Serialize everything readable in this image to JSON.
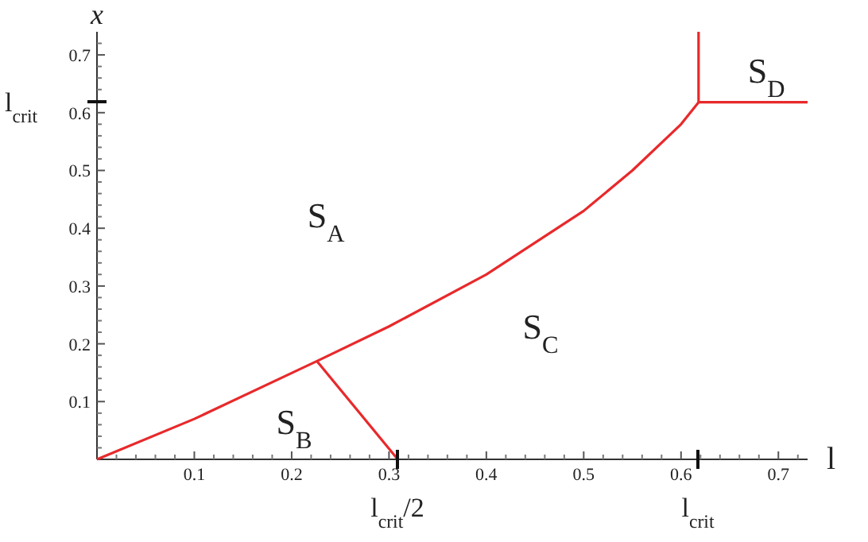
{
  "chart_data": {
    "type": "line",
    "xlabel": "l",
    "ylabel": "x",
    "xlim": [
      0,
      0.73
    ],
    "ylim": [
      0,
      0.74
    ],
    "xticks": [
      0.1,
      0.2,
      0.3,
      0.4,
      0.5,
      0.6,
      0.7,
      {
        "value": 0.02,
        "label": null
      },
      {
        "value": 0.04,
        "label": null
      },
      {
        "value": 0.06,
        "label": null
      },
      {
        "value": 0.08,
        "label": null
      },
      {
        "value": 0.12,
        "label": null
      },
      {
        "value": 0.14,
        "label": null
      },
      {
        "value": 0.16,
        "label": null
      },
      {
        "value": 0.18,
        "label": null
      },
      {
        "value": 0.22,
        "label": null
      },
      {
        "value": 0.24,
        "label": null
      },
      {
        "value": 0.26,
        "label": null
      },
      {
        "value": 0.28,
        "label": null
      },
      {
        "value": 0.32,
        "label": null
      },
      {
        "value": 0.34,
        "label": null
      },
      {
        "value": 0.36,
        "label": null
      },
      {
        "value": 0.38,
        "label": null
      },
      {
        "value": 0.42,
        "label": null
      },
      {
        "value": 0.44,
        "label": null
      },
      {
        "value": 0.46,
        "label": null
      },
      {
        "value": 0.48,
        "label": null
      },
      {
        "value": 0.52,
        "label": null
      },
      {
        "value": 0.54,
        "label": null
      },
      {
        "value": 0.56,
        "label": null
      },
      {
        "value": 0.58,
        "label": null
      },
      {
        "value": 0.62,
        "label": null
      },
      {
        "value": 0.64,
        "label": null
      },
      {
        "value": 0.66,
        "label": null
      },
      {
        "value": 0.68,
        "label": null
      },
      {
        "value": 0.72,
        "label": null
      }
    ],
    "yticks": [
      0.1,
      0.2,
      0.3,
      0.4,
      0.5,
      0.6,
      0.7,
      {
        "value": 0.02,
        "label": null
      },
      {
        "value": 0.04,
        "label": null
      },
      {
        "value": 0.06,
        "label": null
      },
      {
        "value": 0.08,
        "label": null
      },
      {
        "value": 0.12,
        "label": null
      },
      {
        "value": 0.14,
        "label": null
      },
      {
        "value": 0.16,
        "label": null
      },
      {
        "value": 0.18,
        "label": null
      },
      {
        "value": 0.22,
        "label": null
      },
      {
        "value": 0.24,
        "label": null
      },
      {
        "value": 0.26,
        "label": null
      },
      {
        "value": 0.28,
        "label": null
      },
      {
        "value": 0.32,
        "label": null
      },
      {
        "value": 0.34,
        "label": null
      },
      {
        "value": 0.36,
        "label": null
      },
      {
        "value": 0.38,
        "label": null
      },
      {
        "value": 0.42,
        "label": null
      },
      {
        "value": 0.44,
        "label": null
      },
      {
        "value": 0.46,
        "label": null
      },
      {
        "value": 0.48,
        "label": null
      },
      {
        "value": 0.52,
        "label": null
      },
      {
        "value": 0.54,
        "label": null
      },
      {
        "value": 0.56,
        "label": null
      },
      {
        "value": 0.58,
        "label": null
      },
      {
        "value": 0.62,
        "label": null
      },
      {
        "value": 0.64,
        "label": null
      },
      {
        "value": 0.66,
        "label": null
      },
      {
        "value": 0.68,
        "label": null
      },
      {
        "value": 0.72,
        "label": null
      }
    ],
    "grid": false,
    "marker": "none",
    "line_style": "solid",
    "series": [
      {
        "color": "#e8292b",
        "x": [
          0,
          0.1,
          0.226,
          0.3,
          0.4,
          0.5,
          0.55,
          0.6,
          0.618
        ],
        "values": [
          0,
          0.07,
          0.17,
          0.23,
          0.32,
          0.43,
          0.5,
          0.58,
          0.618
        ]
      },
      {
        "color": "#e8292b",
        "x": [
          0.226,
          0.309
        ],
        "values": [
          0.17,
          0
        ]
      },
      {
        "color": "#e8292b",
        "x": [
          0.618,
          0.618
        ],
        "values": [
          0.618,
          0.74
        ]
      },
      {
        "color": "#e8292b",
        "x": [
          0.618,
          0.73
        ],
        "values": [
          0.618,
          0.618
        ]
      }
    ],
    "annotations": [
      "S$_{A}$",
      "S$_{B}$",
      "S$_{C}$",
      "S$_{D}$",
      "l$_{crit}$/2",
      "l$_{crit}$",
      "l$_{crit}$"
    ]
  }
}
